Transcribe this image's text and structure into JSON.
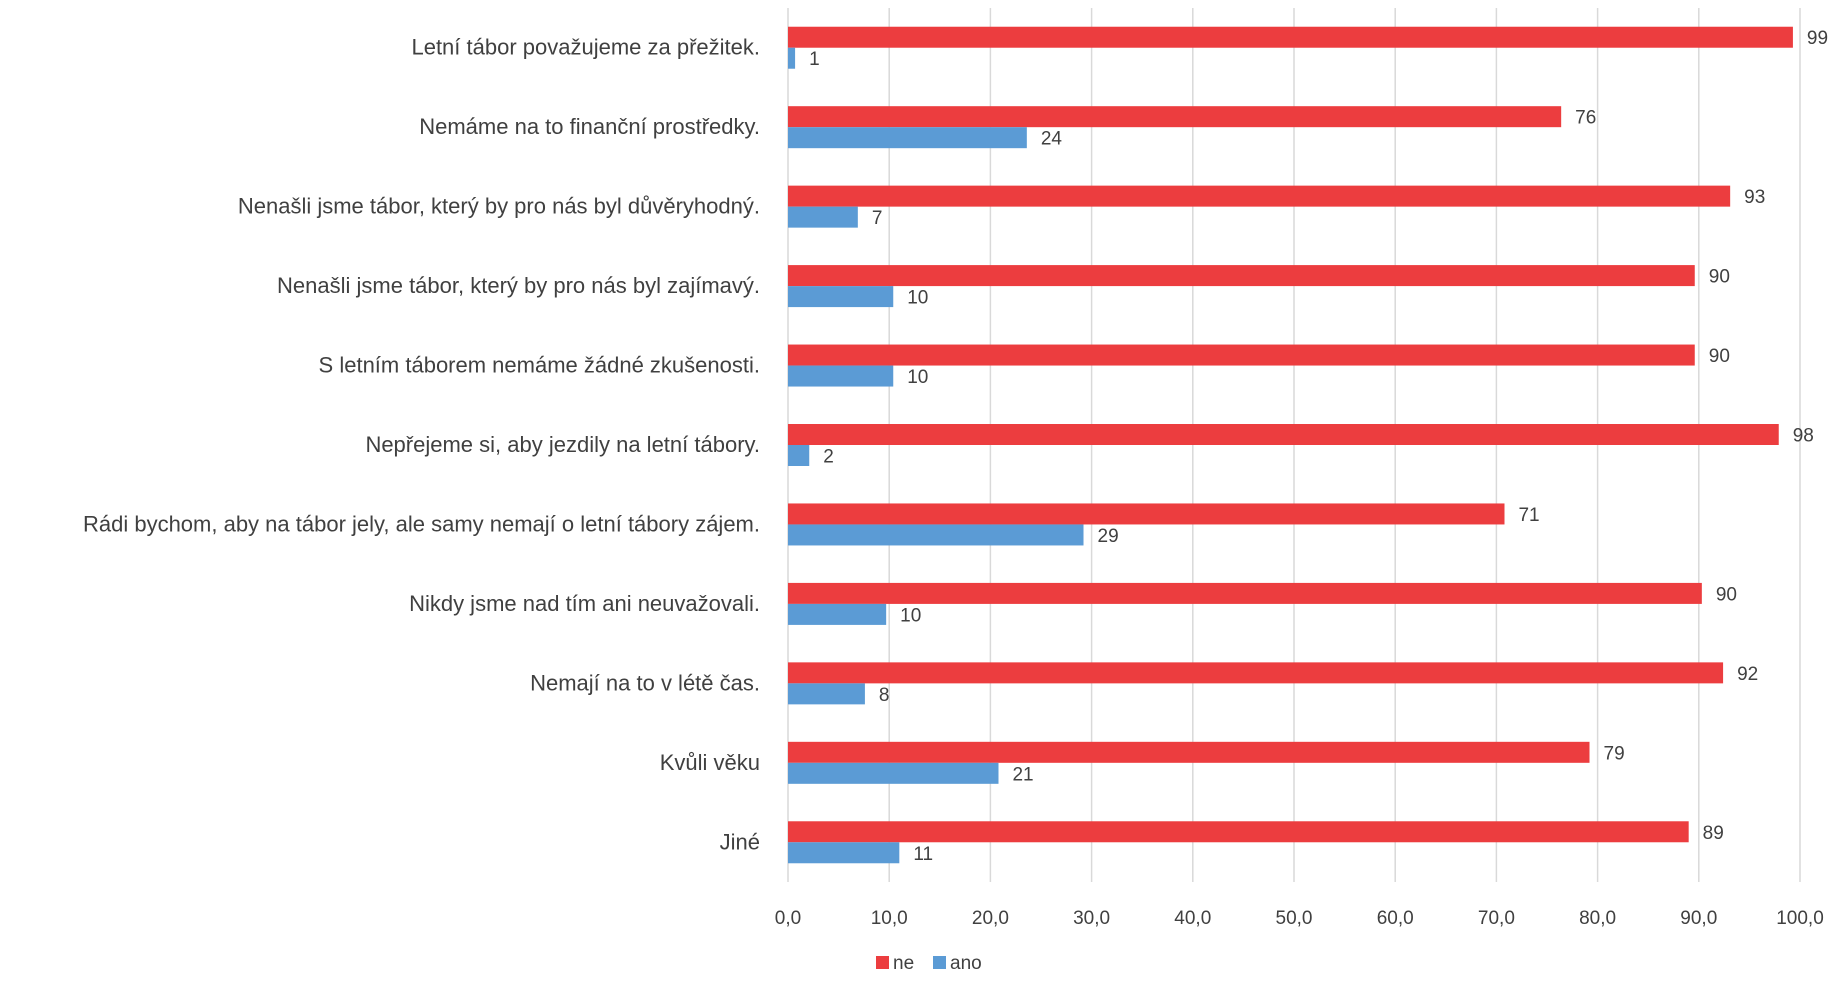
{
  "chart_data": {
    "type": "bar",
    "orientation": "horizontal",
    "categories": [
      "Letní tábor považujeme za přežitek.",
      "Nemáme na to finanční prostředky.",
      "Nenašli jsme tábor, který by pro nás byl důvěryhodný.",
      "Nenašli jsme tábor, který by pro nás byl zajímavý.",
      "S letním táborem nemáme žádné zkušenosti.",
      "Nepřejeme si, aby jezdily na letní tábory.",
      "Rádi bychom, aby na tábor jely, ale samy nemají o letní tábory zájem.",
      "Nikdy jsme nad tím ani neuvažovali.",
      "Nemají na to v létě čas.",
      "Kvůli věku",
      "Jiné"
    ],
    "series": [
      {
        "name": "ne",
        "color": "#ec3d3f",
        "values": [
          99.3,
          76.4,
          93.1,
          89.6,
          89.6,
          97.9,
          70.8,
          90.3,
          92.4,
          79.2,
          89.0
        ],
        "labels": [
          "99",
          "76",
          "93",
          "90",
          "90",
          "98",
          "71",
          "90",
          "92",
          "79",
          "89"
        ]
      },
      {
        "name": "ano",
        "color": "#5b9bd5",
        "values": [
          0.7,
          23.6,
          6.9,
          10.4,
          10.4,
          2.1,
          29.2,
          9.7,
          7.6,
          20.8,
          11.0
        ],
        "labels": [
          "1",
          "24",
          "7",
          "10",
          "10",
          "2",
          "29",
          "10",
          "8",
          "21",
          "11"
        ]
      }
    ],
    "xlim": [
      0,
      100
    ],
    "xticks": [
      "0,0",
      "10,0",
      "20,0",
      "30,0",
      "40,0",
      "50,0",
      "60,0",
      "70,0",
      "80,0",
      "90,0",
      "100,0"
    ],
    "title": "",
    "xlabel": "",
    "ylabel": "",
    "grid": "vertical",
    "legend_position": "bottom"
  }
}
